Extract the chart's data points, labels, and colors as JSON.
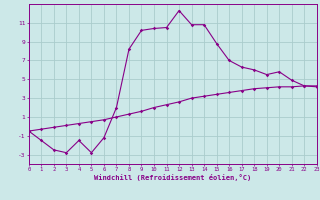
{
  "xlabel": "Windchill (Refroidissement éolien,°C)",
  "background_color": "#cce8e8",
  "grid_color": "#aacccc",
  "line_color": "#880088",
  "x_hours": [
    0,
    1,
    2,
    3,
    4,
    5,
    6,
    7,
    8,
    9,
    10,
    11,
    12,
    13,
    14,
    15,
    16,
    17,
    18,
    19,
    20,
    21,
    22,
    23
  ],
  "windchill": [
    -0.5,
    -1.5,
    -2.5,
    -2.8,
    -1.5,
    -2.8,
    -1.2,
    2.0,
    8.2,
    10.2,
    10.4,
    10.5,
    12.3,
    10.8,
    10.8,
    8.8,
    7.0,
    6.3,
    6.0,
    5.5,
    5.8,
    4.9,
    4.3,
    4.2
  ],
  "temperature": [
    -0.5,
    -0.3,
    -0.1,
    0.1,
    0.3,
    0.5,
    0.7,
    1.0,
    1.3,
    1.6,
    2.0,
    2.3,
    2.6,
    3.0,
    3.2,
    3.4,
    3.6,
    3.8,
    4.0,
    4.1,
    4.2,
    4.2,
    4.3,
    4.3
  ],
  "ylim": [
    -4,
    13
  ],
  "yticks": [
    -3,
    -1,
    1,
    3,
    5,
    7,
    9,
    11
  ],
  "xlim": [
    0,
    23
  ]
}
